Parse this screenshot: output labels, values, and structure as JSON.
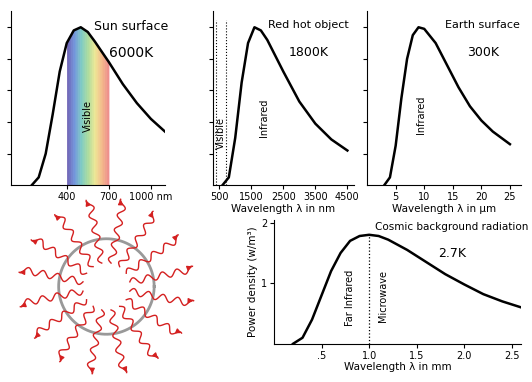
{
  "chart_data": [
    {
      "type": "line",
      "title": "Sun surface",
      "subtitle": "6000K",
      "color": "#000000",
      "x": [
        150,
        200,
        250,
        300,
        350,
        400,
        450,
        500,
        550,
        600,
        700,
        800,
        900,
        1000,
        1100
      ],
      "values": [
        0.0,
        0.05,
        0.2,
        0.45,
        0.72,
        0.9,
        0.98,
        1.0,
        0.97,
        0.91,
        0.78,
        0.64,
        0.52,
        0.42,
        0.34
      ],
      "xlim": [
        0,
        1100
      ],
      "ylim": [
        0,
        1.1
      ],
      "xticks": [
        400,
        700,
        {
          "value": 1000,
          "label": "1000 nm"
        }
      ],
      "yticks": [
        0.2,
        0.4,
        0.6,
        0.8,
        1.0
      ],
      "tick_labels": "x",
      "band": {
        "range": [
          400,
          700
        ],
        "color": "spectrum"
      },
      "annotations": [
        {
          "text": "Visible",
          "x": 550
        }
      ]
    },
    {
      "type": "line",
      "title": "Red hot object",
      "subtitle": "1800K",
      "color": "#000000",
      "x": [
        600,
        800,
        1000,
        1200,
        1400,
        1600,
        1800,
        2000,
        2500,
        3000,
        3500,
        4000,
        4500
      ],
      "values": [
        0.0,
        0.05,
        0.3,
        0.65,
        0.9,
        1.0,
        0.98,
        0.92,
        0.72,
        0.53,
        0.39,
        0.29,
        0.22
      ],
      "xlim": [
        300,
        4700
      ],
      "ylim": [
        0,
        1.1
      ],
      "xticks": [
        500,
        1500,
        2500,
        3500,
        4500
      ],
      "yticks": [
        0.2,
        0.4,
        0.6,
        0.8,
        1.0
      ],
      "tick_labels": "x",
      "x_label": "Wavelength λ in nm",
      "band": {
        "range": [
          400,
          700
        ],
        "line_style": "dotted"
      },
      "annotations": [
        {
          "text": "Visible",
          "x": 550
        },
        {
          "text": "Infrared",
          "x": 1900
        }
      ]
    },
    {
      "type": "line",
      "title": "Earth surface",
      "subtitle": "300K",
      "color": "#000000",
      "x": [
        3,
        4,
        5,
        6,
        7,
        8,
        9,
        10,
        12,
        14,
        16,
        18,
        20,
        22,
        25
      ],
      "values": [
        0.0,
        0.05,
        0.25,
        0.55,
        0.8,
        0.95,
        1.0,
        0.99,
        0.9,
        0.76,
        0.62,
        0.5,
        0.41,
        0.34,
        0.26
      ],
      "xlim": [
        0,
        27
      ],
      "ylim": [
        0,
        1.1
      ],
      "xticks": [
        5,
        10,
        15,
        20,
        25
      ],
      "yticks": [
        0.2,
        0.4,
        0.6,
        0.8,
        1.0
      ],
      "tick_labels": "x",
      "x_label": "Wavelength λ in µm",
      "annotations": [
        {
          "text": "Infrared",
          "x": 9.5
        }
      ]
    },
    {
      "type": "line",
      "title": "Cosmic background radiation",
      "subtitle": "2.7K",
      "color": "#000000",
      "x": [
        0.2,
        0.3,
        0.4,
        0.5,
        0.6,
        0.7,
        0.8,
        0.9,
        1.0,
        1.1,
        1.2,
        1.4,
        1.6,
        1.8,
        2.0,
        2.2,
        2.4,
        2.6
      ],
      "values": [
        0.0,
        0.1,
        0.4,
        0.8,
        1.2,
        1.5,
        1.7,
        1.78,
        1.8,
        1.78,
        1.72,
        1.55,
        1.35,
        1.15,
        0.98,
        0.82,
        0.7,
        0.6
      ],
      "xlim": [
        0,
        2.6
      ],
      "ylim": [
        0,
        2.05
      ],
      "xticks": [
        {
          "value": 0.5,
          "label": ".5"
        },
        {
          "value": 1.0,
          "label": "1.0"
        },
        1.5,
        {
          "value": 2.0,
          "label": "2.0"
        },
        2.5
      ],
      "yticks": [
        1,
        2
      ],
      "x_label": "Wavelength λ in mm",
      "y_label": "Power density (w/m³)",
      "divider": 1.0,
      "annotations": [
        {
          "text": "Far Infrared",
          "x": 0.8
        },
        {
          "text": "Microwave",
          "x": 1.15
        }
      ]
    }
  ]
}
